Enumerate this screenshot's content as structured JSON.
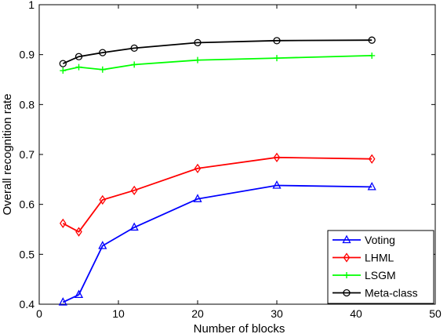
{
  "chart_data": {
    "type": "line",
    "title": "",
    "xlabel": "Number of blocks",
    "ylabel": "Overall recognition rate",
    "xlim": [
      0,
      50
    ],
    "ylim": [
      0.4,
      1
    ],
    "xticks": [
      0,
      10,
      20,
      30,
      40,
      50
    ],
    "xtick_labels": [
      "0",
      "10",
      "20",
      "30",
      "40",
      "50"
    ],
    "yticks": [
      0.4,
      0.5,
      0.6,
      0.7,
      0.8,
      0.9,
      1
    ],
    "ytick_labels": [
      "0.4",
      "0.5",
      "0.6",
      "0.7",
      "0.8",
      "0.9",
      "1"
    ],
    "grid": false,
    "legend_position": "bottom-right",
    "x": [
      3,
      5,
      8,
      12,
      20,
      30,
      42
    ],
    "series": [
      {
        "name": "Voting",
        "color": "#0000ff",
        "marker": "triangle",
        "values": [
          0.404,
          0.419,
          0.517,
          0.554,
          0.611,
          0.638,
          0.635
        ]
      },
      {
        "name": "LHML",
        "color": "#ff0000",
        "marker": "diamond",
        "values": [
          0.562,
          0.545,
          0.609,
          0.628,
          0.672,
          0.694,
          0.691
        ]
      },
      {
        "name": "LSGM",
        "color": "#00ff00",
        "marker": "plus",
        "values": [
          0.868,
          0.875,
          0.87,
          0.88,
          0.889,
          0.893,
          0.898
        ]
      },
      {
        "name": "Meta-class",
        "color": "#000000",
        "marker": "circle",
        "values": [
          0.882,
          0.896,
          0.904,
          0.913,
          0.924,
          0.928,
          0.929
        ]
      }
    ]
  }
}
